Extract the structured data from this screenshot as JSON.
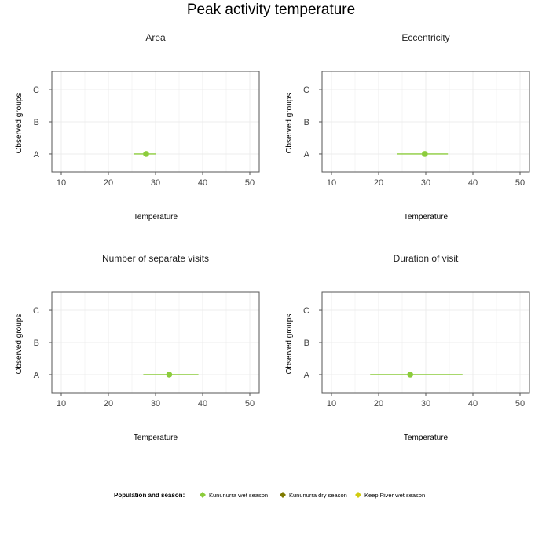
{
  "title": "Peak activity temperature",
  "legend": {
    "title": "Population and season:",
    "placement": "bottom",
    "items": [
      {
        "label": "Kununurra wet season",
        "color": "#8ccc3c"
      },
      {
        "label": "Kununurra dry season",
        "color": "#7f7a00"
      },
      {
        "label": "Keep River wet season",
        "color": "#d2cc10"
      }
    ]
  },
  "chart_data": [
    {
      "type": "scatter",
      "title": "Area",
      "xlabel": "Temperature",
      "ylabel": "Observed groups",
      "xlim": [
        8,
        52
      ],
      "xticks": [
        10,
        20,
        30,
        40,
        50
      ],
      "categories": [
        "A",
        "B",
        "C"
      ],
      "grid": true,
      "series": [
        {
          "name": "Kununurra wet season",
          "color": "#8ccc3c",
          "category": "A",
          "estimate": 28,
          "low": 25.5,
          "high": 30
        }
      ]
    },
    {
      "type": "scatter",
      "title": "Eccentricity",
      "xlabel": "Temperature",
      "ylabel": "Observed groups",
      "xlim": [
        8,
        52
      ],
      "xticks": [
        10,
        20,
        30,
        40,
        50
      ],
      "categories": [
        "A",
        "B",
        "C"
      ],
      "grid": true,
      "series": [
        {
          "name": "Kununurra wet season",
          "color": "#8ccc3c",
          "category": "A",
          "estimate": 29.8,
          "low": 24,
          "high": 34.7
        }
      ]
    },
    {
      "type": "scatter",
      "title": "Number of separate visits",
      "xlabel": "Temperature",
      "ylabel": "Observed groups",
      "xlim": [
        8,
        52
      ],
      "xticks": [
        10,
        20,
        30,
        40,
        50
      ],
      "categories": [
        "A",
        "B",
        "C"
      ],
      "grid": true,
      "series": [
        {
          "name": "Kununurra wet season",
          "color": "#8ccc3c",
          "category": "A",
          "estimate": 32.9,
          "low": 27.4,
          "high": 39.1
        }
      ]
    },
    {
      "type": "scatter",
      "title": "Duration of visit",
      "xlabel": "Temperature",
      "ylabel": "Observed groups",
      "xlim": [
        8,
        52
      ],
      "xticks": [
        10,
        20,
        30,
        40,
        50
      ],
      "categories": [
        "A",
        "B",
        "C"
      ],
      "grid": true,
      "series": [
        {
          "name": "Kununurra wet season",
          "color": "#8ccc3c",
          "category": "A",
          "estimate": 26.7,
          "low": 18.2,
          "high": 37.8
        }
      ]
    }
  ]
}
